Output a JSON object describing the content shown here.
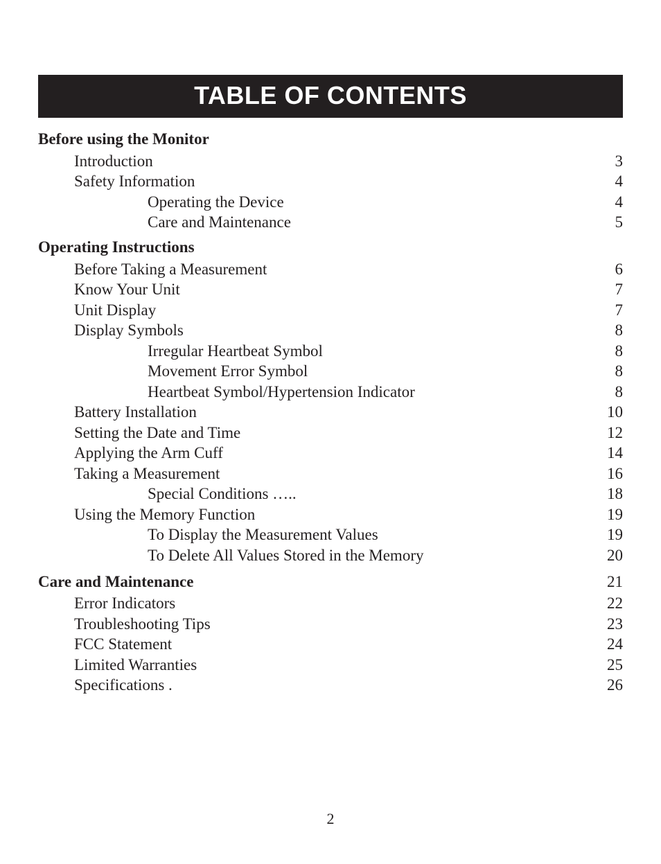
{
  "title": "TABLE OF CONTENTS",
  "page_number": "2",
  "colors": {
    "ink": "#231f20",
    "bar_bg": "#231f20",
    "bar_fg": "#ffffff",
    "page_bg": "#ffffff"
  },
  "typography": {
    "title_family": "Segoe UI Semibold, Myriad Pro, Arial, sans-serif",
    "title_size_pt": 27,
    "body_family": "Times New Roman, Times, serif",
    "body_size_pt": 17
  },
  "sections": [
    {
      "heading": "Before using the Monitor",
      "page": null,
      "entries": [
        {
          "indent": 1,
          "label": "Introduction ",
          "page": " 3"
        },
        {
          "indent": 1,
          "label": "Safety Information ",
          "page": " 4"
        },
        {
          "indent": 2,
          "label": "Operating the Device ",
          "page": " 4"
        },
        {
          "indent": 2,
          "label": "Care and Maintenance ",
          "page": " 5"
        }
      ]
    },
    {
      "heading": "Operating Instructions",
      "page": null,
      "entries": [
        {
          "indent": 1,
          "label": "Before Taking a Measurement ",
          "page": " 6"
        },
        {
          "indent": 1,
          "label": "Know Your Unit ",
          "page": " 7"
        },
        {
          "indent": 1,
          "label": "Unit Display ",
          "page": " 7"
        },
        {
          "indent": 1,
          "label": "Display Symbols ",
          "page": " 8"
        },
        {
          "indent": 2,
          "label": "Irregular Heartbeat Symbol",
          "page": " 8"
        },
        {
          "indent": 2,
          "label": "Movement Error Symbol ",
          "page": " 8"
        },
        {
          "indent": 2,
          "label": "Heartbeat Symbol/Hypertension Indicator ",
          "page": " 8"
        },
        {
          "indent": 1,
          "label": "Battery Installation ",
          "page": "10"
        },
        {
          "indent": 1,
          "label": "Setting the Date and Time ",
          "page": "12"
        },
        {
          "indent": 1,
          "label": "Applying the Arm Cuff ",
          "page": "14"
        },
        {
          "indent": 1,
          "label": "Taking a Measurement ",
          "page": "16"
        },
        {
          "indent": 2,
          "label": "Special Conditions ….. ",
          "page": "18"
        },
        {
          "indent": 1,
          "label": "Using the Memory Function ",
          "page": "19"
        },
        {
          "indent": 2,
          "label": "To Display the Measurement Values ",
          "page": "19"
        },
        {
          "indent": 2,
          "label": "To Delete All Values Stored in the Memory ",
          "page": "20"
        }
      ]
    },
    {
      "heading": "Care and Maintenance ",
      "page": "21",
      "entries": [
        {
          "indent": 1,
          "label": "Error Indicators ",
          "page": "22"
        },
        {
          "indent": 1,
          "label": "Troubleshooting Tips",
          "page": "23"
        },
        {
          "indent": 1,
          "label": "FCC Statement ",
          "page": "24"
        },
        {
          "indent": 1,
          "label": "Limited Warranties ",
          "page": "25"
        },
        {
          "indent": 1,
          "label": "Specifications . ",
          "page": "26"
        }
      ]
    }
  ]
}
